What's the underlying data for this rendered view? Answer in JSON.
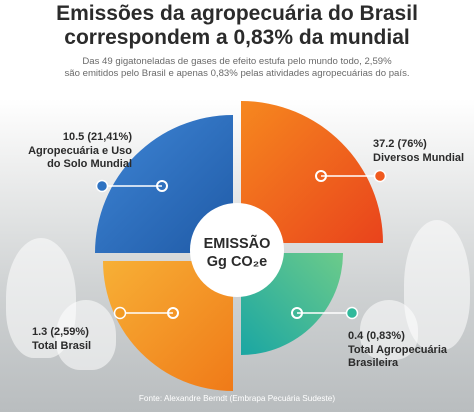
{
  "title_line1": "Emissões da agropecuária do Brasil",
  "title_line2": "correspondem a 0,83% da mundial",
  "subtitle_line1": "Das 49 gigatoneladas de gases de efeito estufa pelo mundo todo, 2,59%",
  "subtitle_line2": "são emitidos pelo Brasil e apenas 0,83% pelas atividades agropecuárias do país.",
  "center_line1": "EMISSÃO",
  "center_line2": "Gg CO₂e",
  "source": "Fonte: Alexandre Berndt (Embrapa Pecuária Sudeste)",
  "colors": {
    "blue": "#2f73c2",
    "orange_red": "#f05a1e",
    "teal": "#30b99b",
    "orange": "#f29a22",
    "title": "#2b2b2b"
  },
  "chart_data": {
    "type": "pie",
    "title": "",
    "segments": [
      {
        "key": "agro_uso_solo",
        "value": "10.5 (21,41%)",
        "label_line1": "Agropecuária e Uso",
        "label_line2": "do Solo Mundial",
        "color": "#2f73c2"
      },
      {
        "key": "diversos_mundial",
        "value": "37.2 (76%)",
        "label_line1": "Diversos Mundial",
        "label_line2": "",
        "color": "#f05a1e"
      },
      {
        "key": "total_agro_brasileira",
        "value": "0.4 (0,83%)",
        "label_line1": "Total Agropecuária",
        "label_line2": "Brasileira",
        "color": "#30b99b"
      },
      {
        "key": "total_brasil",
        "value": "1.3 (2,59%)",
        "label_line1": "Total Brasil",
        "label_line2": "",
        "color": "#f29a22"
      }
    ]
  }
}
